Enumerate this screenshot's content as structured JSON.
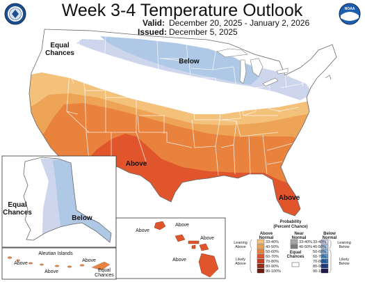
{
  "title": "Week 3-4 Temperature Outlook",
  "valid_label": "Valid:",
  "valid_dates": "December 20, 2025 - January 2, 2026",
  "issued_label": "Issued:",
  "issued_date": "December 5, 2025",
  "logos": {
    "left": "NOAA / Department of Commerce seal",
    "right": "NOAA logo",
    "right_text": "NOAA"
  },
  "colors": {
    "above_33_40": "#f4c17a",
    "above_40_50": "#eea457",
    "above_50_60": "#e9823c",
    "above_60_70": "#e0552c",
    "above_70_80": "#c43b1f",
    "above_80_90": "#962c17",
    "above_90_100": "#6b1c10",
    "near_33_40": "#a6a6a6",
    "near_40_50": "#7d7d7d",
    "below_33_40": "#cdd6ec",
    "below_40_50": "#aec8e6",
    "below_50_60": "#8db7e0",
    "below_60_70": "#5a9bd4",
    "below_70_80": "#2f6fbd",
    "below_80_90": "#1f3f8f",
    "below_90_100": "#1c1660"
  },
  "map_labels": {
    "conus_ec": "Equal\nChances",
    "conus_below": "Below",
    "conus_above_sw": "Above",
    "conus_above_fl": "Above",
    "ak_ec": "Equal\nChances",
    "ak_below": "Below",
    "aleutian": "Aleutian Islands",
    "aleut_above_1": "Above",
    "aleut_above_2": "Above",
    "aleut_above_3": "Above",
    "aleut_ec": "Equal\nChances",
    "hi_above_1": "Above",
    "hi_above_2": "Above",
    "hi_above_3": "Above",
    "hi_above_4": "Above"
  },
  "legend": {
    "title": "Probability\n(Percent Chance)",
    "above_header": "Above\nNormal",
    "near_header": "Near\nNormal",
    "below_header": "Below\nNormal",
    "above_ranges": [
      "33-40%",
      "40-50%",
      "50-60%",
      "60-70%",
      "70-80%",
      "80-90%",
      "90-100%"
    ],
    "near_ranges": [
      "33-40%",
      "40-50%"
    ],
    "below_ranges": [
      "33-40%",
      "40-50%",
      "50-60%",
      "60-70%",
      "70-80%",
      "80-90%",
      "90-100%"
    ],
    "leaning_above": "Leaning\nAbove",
    "likely_above": "Likely\nAbove",
    "equal_chances": "Equal\nChances",
    "leaning_below": "Leaning\nBelow",
    "likely_below": "Likely\nBelow"
  }
}
